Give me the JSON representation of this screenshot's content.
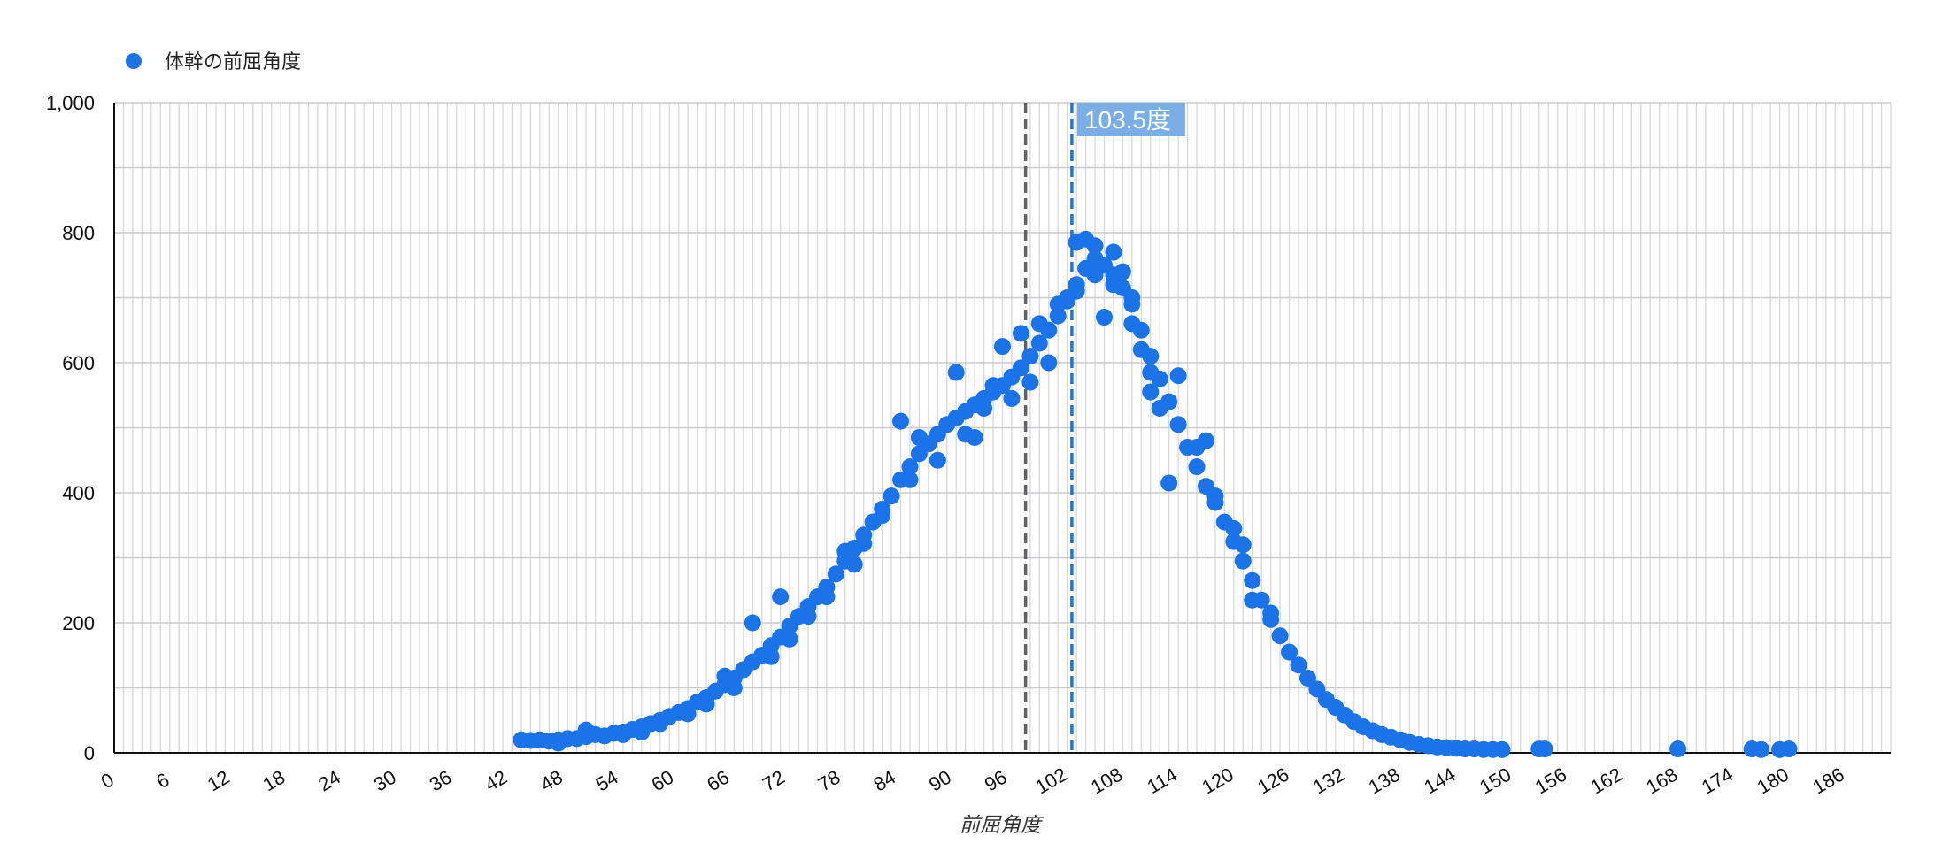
{
  "chart_data": {
    "type": "scatter",
    "title": "",
    "xlabel": "前屈角度",
    "ylabel": "",
    "xlim": [
      0,
      192
    ],
    "ylim": [
      0,
      1000
    ],
    "x_ticks": [
      0,
      6,
      12,
      18,
      24,
      30,
      36,
      42,
      48,
      54,
      60,
      66,
      72,
      78,
      84,
      90,
      96,
      102,
      108,
      114,
      120,
      126,
      132,
      138,
      144,
      150,
      156,
      162,
      168,
      174,
      180,
      186
    ],
    "y_ticks": [
      0,
      200,
      400,
      600,
      800,
      1000
    ],
    "y_tick_labels": [
      "0",
      "200",
      "400",
      "600",
      "800",
      "1,000"
    ],
    "grid": true,
    "legend_position": "top-left",
    "series": [
      {
        "name": "体幹の前屈角度",
        "color": "#1a73e8",
        "points": [
          [
            44,
            20
          ],
          [
            45,
            19
          ],
          [
            46,
            20
          ],
          [
            47,
            18
          ],
          [
            48,
            20
          ],
          [
            49,
            22
          ],
          [
            50,
            22
          ],
          [
            51,
            25
          ],
          [
            52,
            28
          ],
          [
            53,
            26
          ],
          [
            54,
            30
          ],
          [
            55,
            32
          ],
          [
            56,
            36
          ],
          [
            57,
            40
          ],
          [
            58,
            45
          ],
          [
            59,
            50
          ],
          [
            60,
            56
          ],
          [
            61,
            62
          ],
          [
            62,
            68
          ],
          [
            63,
            78
          ],
          [
            64,
            85
          ],
          [
            65,
            95
          ],
          [
            66,
            105
          ],
          [
            67,
            115
          ],
          [
            68,
            128
          ],
          [
            69,
            140
          ],
          [
            70,
            150
          ],
          [
            71,
            165
          ],
          [
            72,
            178
          ],
          [
            73,
            195
          ],
          [
            74,
            210
          ],
          [
            75,
            225
          ],
          [
            76,
            240
          ],
          [
            77,
            255
          ],
          [
            78,
            275
          ],
          [
            79,
            295
          ],
          [
            80,
            315
          ],
          [
            81,
            335
          ],
          [
            82,
            355
          ],
          [
            83,
            375
          ],
          [
            84,
            395
          ],
          [
            85,
            420
          ],
          [
            86,
            440
          ],
          [
            87,
            460
          ],
          [
            88,
            475
          ],
          [
            89,
            490
          ],
          [
            90,
            505
          ],
          [
            91,
            515
          ],
          [
            92,
            525
          ],
          [
            93,
            535
          ],
          [
            94,
            545
          ],
          [
            95,
            555
          ],
          [
            96,
            565
          ],
          [
            97,
            578
          ],
          [
            98,
            592
          ],
          [
            99,
            610
          ],
          [
            100,
            630
          ],
          [
            101,
            650
          ],
          [
            102,
            672
          ],
          [
            103,
            695
          ],
          [
            104,
            720
          ],
          [
            105,
            745
          ],
          [
            106,
            760
          ],
          [
            107,
            750
          ],
          [
            108,
            735
          ],
          [
            109,
            715
          ],
          [
            110,
            690
          ],
          [
            111,
            650
          ],
          [
            112,
            610
          ],
          [
            113,
            575
          ],
          [
            114,
            540
          ],
          [
            115,
            505
          ],
          [
            116,
            470
          ],
          [
            117,
            440
          ],
          [
            118,
            410
          ],
          [
            119,
            385
          ],
          [
            120,
            355
          ],
          [
            121,
            325
          ],
          [
            122,
            295
          ],
          [
            123,
            265
          ],
          [
            124,
            235
          ],
          [
            125,
            205
          ],
          [
            126,
            180
          ],
          [
            127,
            155
          ],
          [
            128,
            135
          ],
          [
            129,
            115
          ],
          [
            130,
            98
          ],
          [
            131,
            82
          ],
          [
            132,
            70
          ],
          [
            133,
            58
          ],
          [
            134,
            48
          ],
          [
            135,
            40
          ],
          [
            136,
            34
          ],
          [
            137,
            28
          ],
          [
            138,
            24
          ],
          [
            139,
            20
          ],
          [
            140,
            16
          ],
          [
            141,
            13
          ],
          [
            142,
            11
          ],
          [
            143,
            9
          ],
          [
            144,
            8
          ],
          [
            145,
            7
          ],
          [
            146,
            6
          ],
          [
            147,
            6
          ],
          [
            148,
            5
          ],
          [
            149,
            5
          ],
          [
            150,
            5
          ],
          [
            154,
            6
          ],
          [
            154.6,
            6
          ],
          [
            169,
            6
          ],
          [
            177,
            6
          ],
          [
            178,
            5
          ],
          [
            180,
            5
          ],
          [
            181,
            6
          ],
          [
            69,
            200
          ],
          [
            72,
            240
          ],
          [
            80,
            290
          ],
          [
            85,
            510
          ],
          [
            86,
            420
          ],
          [
            83,
            365
          ],
          [
            92,
            490
          ],
          [
            93,
            485
          ],
          [
            91,
            585
          ],
          [
            96,
            625
          ],
          [
            98,
            645
          ],
          [
            99,
            570
          ],
          [
            101,
            600
          ],
          [
            103,
            700
          ],
          [
            104,
            785
          ],
          [
            105,
            790
          ],
          [
            106,
            780
          ],
          [
            107,
            670
          ],
          [
            108,
            770
          ],
          [
            109,
            740
          ],
          [
            110,
            660
          ],
          [
            111,
            620
          ],
          [
            112,
            555
          ],
          [
            113,
            530
          ],
          [
            114,
            415
          ],
          [
            115,
            580
          ],
          [
            117,
            470
          ],
          [
            118,
            480
          ],
          [
            119,
            395
          ],
          [
            121,
            345
          ],
          [
            122,
            320
          ],
          [
            123,
            235
          ],
          [
            125,
            215
          ],
          [
            62,
            60
          ],
          [
            64,
            75
          ],
          [
            59,
            45
          ],
          [
            57,
            32
          ],
          [
            51,
            35
          ],
          [
            55,
            28
          ],
          [
            48,
            15
          ],
          [
            66,
            118
          ],
          [
            67,
            100
          ],
          [
            71,
            148
          ],
          [
            73,
            175
          ],
          [
            75,
            210
          ],
          [
            77,
            240
          ],
          [
            79,
            310
          ],
          [
            81,
            322
          ],
          [
            87,
            485
          ],
          [
            89,
            450
          ],
          [
            94,
            530
          ],
          [
            95,
            565
          ],
          [
            97,
            545
          ],
          [
            100,
            660
          ],
          [
            102,
            690
          ],
          [
            104,
            710
          ],
          [
            106,
            735
          ],
          [
            108,
            720
          ],
          [
            110,
            700
          ],
          [
            112,
            585
          ]
        ]
      }
    ],
    "reference_lines": [
      {
        "x": 98.5,
        "color": "#5f6368",
        "style": "dashed"
      },
      {
        "x": 103.5,
        "color": "#1a73e8",
        "style": "dashed",
        "label": "103.5度"
      }
    ]
  }
}
